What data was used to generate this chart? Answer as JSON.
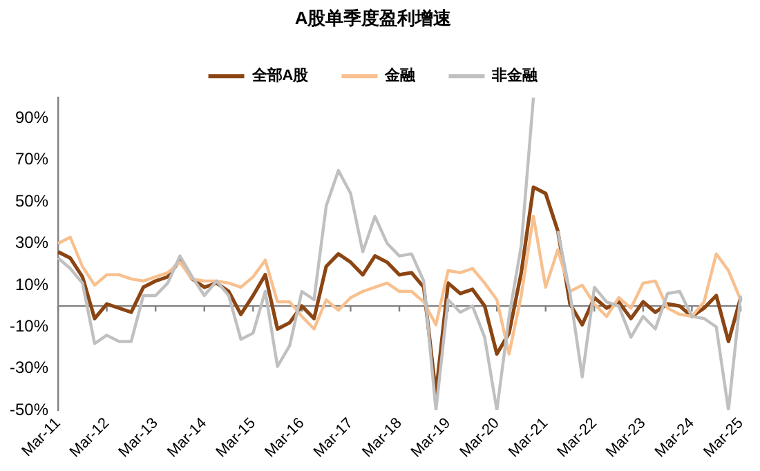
{
  "chart_data": {
    "type": "line",
    "title": "A股单季度盈利增速",
    "categories": [
      "Mar-11",
      null,
      null,
      null,
      "Mar-12",
      null,
      null,
      null,
      "Mar-13",
      null,
      null,
      null,
      "Mar-14",
      null,
      null,
      null,
      "Mar-15",
      null,
      null,
      null,
      "Mar-16",
      null,
      null,
      null,
      "Mar-17",
      null,
      null,
      null,
      "Mar-18",
      null,
      null,
      null,
      "Mar-19",
      null,
      null,
      null,
      "Mar-20",
      null,
      null,
      null,
      "Mar-21",
      null,
      null,
      null,
      "Mar-22",
      null,
      null,
      null,
      "Mar-23",
      null,
      null,
      null,
      "Mar-24",
      null,
      null,
      null,
      "Mar-25"
    ],
    "series": [
      {
        "name": "全部A股",
        "color": "#8b4513",
        "values": [
          26,
          23,
          14,
          -6,
          1,
          -1,
          -3,
          9,
          12,
          14,
          22,
          13,
          9,
          11,
          7,
          -4,
          5,
          15,
          -11,
          -8,
          0,
          -6,
          19,
          25,
          21,
          15,
          24,
          21,
          15,
          16,
          9,
          -42,
          11,
          6,
          8,
          0,
          -23,
          -13,
          16,
          57,
          54,
          36,
          1,
          -9,
          4,
          -1,
          2,
          -6,
          2,
          -3,
          1,
          0,
          -5,
          -1,
          5,
          -17,
          4
        ]
      },
      {
        "name": "金融",
        "color": "#f8c08f",
        "values": [
          30,
          33,
          19,
          10,
          15,
          15,
          13,
          12,
          14,
          16,
          21,
          13,
          12,
          12,
          11,
          9,
          14,
          22,
          2,
          2,
          -5,
          -11,
          3,
          -2,
          4,
          7,
          9,
          11,
          7,
          7,
          2,
          -9,
          17,
          16,
          18,
          11,
          3,
          -23,
          5,
          43,
          9,
          27,
          7,
          10,
          1,
          -5,
          4,
          -1,
          11,
          12,
          -1,
          -4,
          -5,
          2,
          25,
          17,
          3
        ]
      },
      {
        "name": "非金融",
        "color": "#c0c0c0",
        "values": [
          23,
          18,
          11,
          -18,
          -14,
          -17,
          -17,
          5,
          5,
          11,
          24,
          14,
          5,
          12,
          5,
          -16,
          -13,
          7,
          -29,
          -19,
          7,
          3,
          48,
          65,
          54,
          26,
          43,
          30,
          24,
          25,
          12,
          -50,
          3,
          -3,
          0,
          -15,
          -50,
          -5,
          29,
          100,
          null,
          36,
          6,
          -34,
          9,
          2,
          0,
          -15,
          -5,
          -11,
          6,
          7,
          -5,
          -6,
          -10,
          -50,
          5
        ]
      }
    ],
    "ylim": [
      -50,
      100
    ],
    "yticks": [
      {
        "value": -50,
        "label": "-50%"
      },
      {
        "value": -30,
        "label": "-30%"
      },
      {
        "value": -10,
        "label": "-10%"
      },
      {
        "value": 10,
        "label": "10%"
      },
      {
        "value": 30,
        "label": "30%"
      },
      {
        "value": 50,
        "label": "50%"
      },
      {
        "value": 70,
        "label": "70%"
      },
      {
        "value": 90,
        "label": "90%"
      }
    ],
    "ref_lines": [
      {
        "axis": "y",
        "value": 0,
        "color": "#808080"
      }
    ],
    "grid": false,
    "legend": "top",
    "marker": "none",
    "line_style": "solid"
  }
}
